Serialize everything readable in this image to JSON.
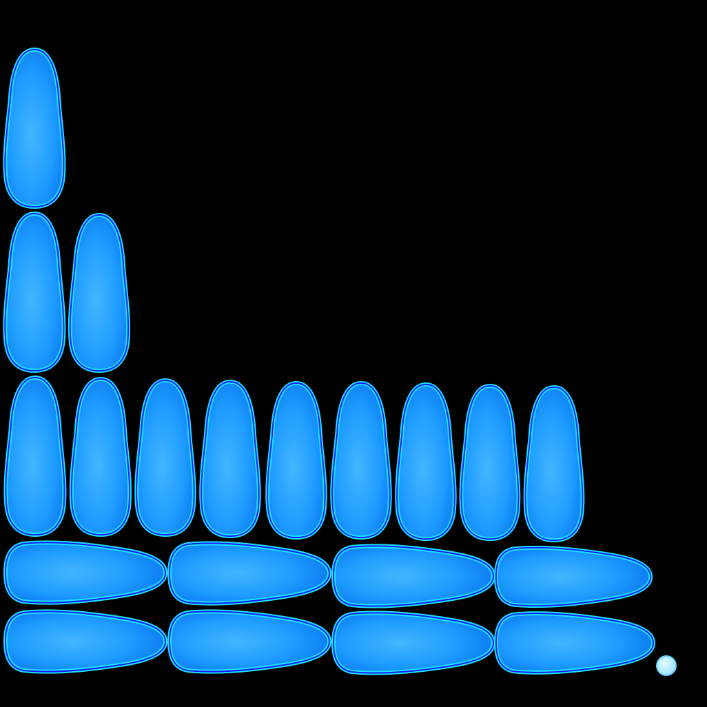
{
  "sprite_sheet": {
    "background_color": "#000000",
    "colors": {
      "outline": "#1a1aff",
      "glow": "#19e6ff",
      "fill_light": "#43b6ff",
      "fill_mid": "#1d9bff",
      "fill_dark": "#0a78f0",
      "dot_light": "#e6fbff",
      "dot_mid": "#9fe3ff"
    },
    "groups": [
      {
        "name": "vertical-droplet-1",
        "count": 1,
        "orientation": "vertical"
      },
      {
        "name": "vertical-droplet-2",
        "count": 2,
        "orientation": "vertical"
      },
      {
        "name": "vertical-droplet-9",
        "count": 9,
        "orientation": "vertical"
      },
      {
        "name": "horizontal-droplet-4a",
        "count": 4,
        "orientation": "horizontal"
      },
      {
        "name": "horizontal-droplet-4b",
        "count": 4,
        "orientation": "horizontal"
      },
      {
        "name": "small-bubble",
        "count": 1,
        "orientation": "dot"
      }
    ]
  }
}
